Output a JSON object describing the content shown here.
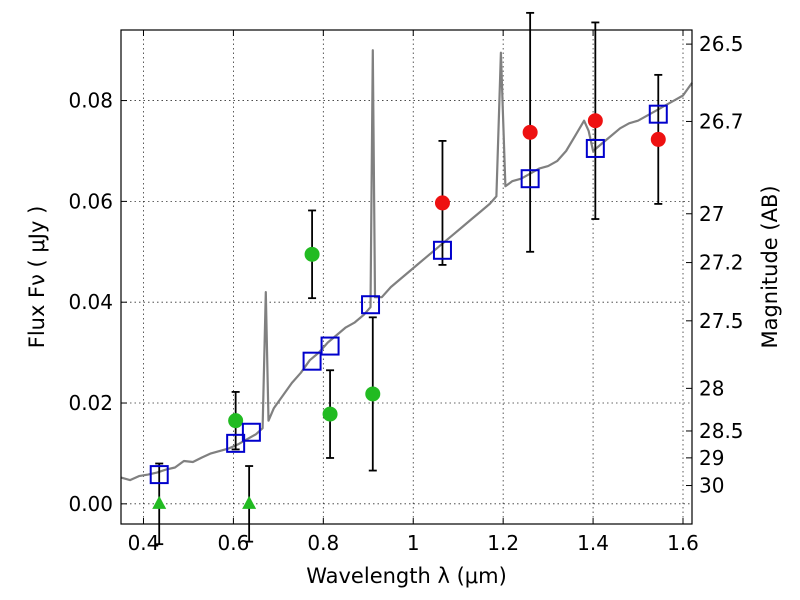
{
  "chart_data": {
    "type": "scatter",
    "xlabel": "Wavelength  λ (μm)",
    "ylabel": "Flux  Fν  ( μJy )",
    "ylabel_right": "Magnitude (AB)",
    "xlim": [
      0.35,
      1.62
    ],
    "ylim": [
      -0.004,
      0.094
    ],
    "x_ticks": [
      0.4,
      0.6,
      0.8,
      1.0,
      1.2,
      1.4,
      1.6
    ],
    "x_tick_labels": [
      "0.4",
      "0.6",
      "0.8",
      "1",
      "1.2",
      "1.4",
      "1.6"
    ],
    "y_ticks": [
      0.0,
      0.02,
      0.04,
      0.06,
      0.08
    ],
    "y_tick_labels": [
      "0.00",
      "0.02",
      "0.04",
      "0.06",
      "0.08"
    ],
    "mag_ticks": [
      26.5,
      26.7,
      27,
      27.2,
      27.5,
      28,
      28.5,
      29,
      30
    ],
    "mag_tick_labels": [
      "26.5",
      "26.7",
      "27",
      "27.2",
      "27.5",
      "28",
      "28.5",
      "29",
      "30"
    ],
    "grid": true,
    "colors": {
      "model": "#808080",
      "green": "#22bb22",
      "red": "#ee1111",
      "box": "#0000cc",
      "errorbar": "#000000"
    },
    "model_spectrum": [
      [
        0.35,
        0.0052
      ],
      [
        0.37,
        0.0047
      ],
      [
        0.39,
        0.0055
      ],
      [
        0.41,
        0.0058
      ],
      [
        0.43,
        0.0062
      ],
      [
        0.45,
        0.0068
      ],
      [
        0.47,
        0.0072
      ],
      [
        0.49,
        0.0085
      ],
      [
        0.51,
        0.0083
      ],
      [
        0.53,
        0.0092
      ],
      [
        0.55,
        0.01
      ],
      [
        0.57,
        0.0105
      ],
      [
        0.59,
        0.011
      ],
      [
        0.61,
        0.0118
      ],
      [
        0.63,
        0.0128
      ],
      [
        0.65,
        0.0138
      ],
      [
        0.665,
        0.015
      ],
      [
        0.672,
        0.042
      ],
      [
        0.678,
        0.0165
      ],
      [
        0.69,
        0.019
      ],
      [
        0.71,
        0.0215
      ],
      [
        0.73,
        0.024
      ],
      [
        0.75,
        0.026
      ],
      [
        0.77,
        0.0285
      ],
      [
        0.79,
        0.03
      ],
      [
        0.81,
        0.032
      ],
      [
        0.83,
        0.0335
      ],
      [
        0.85,
        0.035
      ],
      [
        0.87,
        0.036
      ],
      [
        0.89,
        0.0375
      ],
      [
        0.905,
        0.039
      ],
      [
        0.91,
        0.09
      ],
      [
        0.915,
        0.041
      ],
      [
        0.93,
        0.041
      ],
      [
        0.95,
        0.043
      ],
      [
        0.97,
        0.0445
      ],
      [
        0.99,
        0.046
      ],
      [
        1.01,
        0.0475
      ],
      [
        1.03,
        0.049
      ],
      [
        1.05,
        0.0505
      ],
      [
        1.07,
        0.052
      ],
      [
        1.09,
        0.0535
      ],
      [
        1.11,
        0.055
      ],
      [
        1.13,
        0.0565
      ],
      [
        1.15,
        0.058
      ],
      [
        1.17,
        0.0595
      ],
      [
        1.185,
        0.061
      ],
      [
        1.195,
        0.0895
      ],
      [
        1.205,
        0.063
      ],
      [
        1.22,
        0.064
      ],
      [
        1.24,
        0.0645
      ],
      [
        1.26,
        0.0655
      ],
      [
        1.28,
        0.0665
      ],
      [
        1.3,
        0.067
      ],
      [
        1.32,
        0.068
      ],
      [
        1.34,
        0.07
      ],
      [
        1.36,
        0.073
      ],
      [
        1.38,
        0.076
      ],
      [
        1.39,
        0.074
      ],
      [
        1.4,
        0.07
      ],
      [
        1.42,
        0.0715
      ],
      [
        1.44,
        0.073
      ],
      [
        1.46,
        0.0745
      ],
      [
        1.48,
        0.0755
      ],
      [
        1.5,
        0.076
      ],
      [
        1.52,
        0.077
      ],
      [
        1.54,
        0.078
      ],
      [
        1.56,
        0.079
      ],
      [
        1.58,
        0.08
      ],
      [
        1.6,
        0.081
      ],
      [
        1.62,
        0.0835
      ]
    ],
    "green_points": [
      {
        "x": 0.605,
        "y": 0.0165,
        "yerr": 0.0057
      },
      {
        "x": 0.775,
        "y": 0.0495,
        "yerr": 0.0087
      },
      {
        "x": 0.815,
        "y": 0.0178,
        "yerr": 0.0087
      },
      {
        "x": 0.91,
        "y": 0.0218,
        "yerr": 0.0152
      }
    ],
    "green_upper_limits": [
      {
        "x": 0.435,
        "y": 0.0,
        "yerr": 0.008
      },
      {
        "x": 0.635,
        "y": 0.0,
        "yerr": 0.0075
      }
    ],
    "red_points": [
      {
        "x": 1.065,
        "y": 0.0597,
        "yerr": 0.0123
      },
      {
        "x": 1.26,
        "y": 0.0737,
        "yerr": 0.0237
      },
      {
        "x": 1.405,
        "y": 0.076,
        "yerr": 0.0195
      },
      {
        "x": 1.545,
        "y": 0.0723,
        "yerr": 0.0128
      }
    ],
    "model_boxes": [
      {
        "x": 0.435,
        "y": 0.0058
      },
      {
        "x": 0.605,
        "y": 0.012
      },
      {
        "x": 0.64,
        "y": 0.0142
      },
      {
        "x": 0.775,
        "y": 0.0283
      },
      {
        "x": 0.815,
        "y": 0.0313
      },
      {
        "x": 0.905,
        "y": 0.0395
      },
      {
        "x": 1.065,
        "y": 0.0503
      },
      {
        "x": 1.26,
        "y": 0.0645
      },
      {
        "x": 1.405,
        "y": 0.0705
      },
      {
        "x": 1.545,
        "y": 0.0773
      }
    ]
  }
}
